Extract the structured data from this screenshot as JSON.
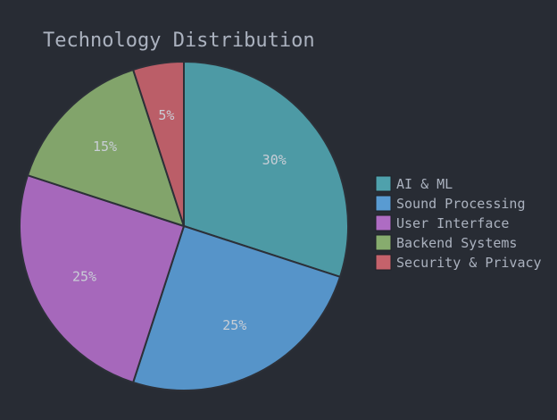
{
  "chart_data": {
    "type": "pie",
    "title": "Technology Distribution",
    "categories": [
      "AI & ML",
      "Sound Processing",
      "User Interface",
      "Backend Systems",
      "Security & Privacy"
    ],
    "values": [
      30,
      25,
      25,
      15,
      5
    ],
    "value_labels": [
      "30%",
      "25%",
      "25%",
      "15%",
      "5%"
    ],
    "colors": [
      "#56b6c2",
      "#61afef",
      "#c678dd",
      "#98c379",
      "#e06c75"
    ],
    "legend_position": "right",
    "start_angle_deg": 0,
    "direction": "clockwise"
  },
  "theme": {
    "background": "#282c34",
    "text": "#abb2bf",
    "slice_border": "#2c3038"
  }
}
